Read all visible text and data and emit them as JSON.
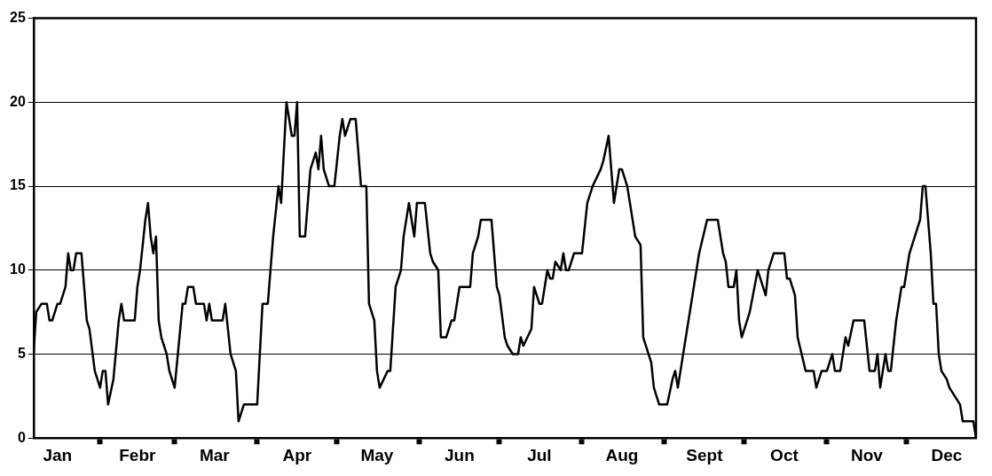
{
  "chart_data": {
    "type": "line",
    "xlim": [
      "--01-07",
      "--12-27"
    ],
    "ylim": [
      0,
      25
    ],
    "yticks": [
      0,
      5,
      10,
      15,
      20,
      25
    ],
    "xticks": [
      {
        "value": "--01-16",
        "label": "Jan"
      },
      {
        "value": "--02-01",
        "label": null
      },
      {
        "value": "--02-15",
        "label": "Febr"
      },
      {
        "value": "--03-01",
        "label": null
      },
      {
        "value": "--03-16",
        "label": "Mar"
      },
      {
        "value": "--04-01",
        "label": null
      },
      {
        "value": "--04-16",
        "label": "Apr"
      },
      {
        "value": "--05-01",
        "label": null
      },
      {
        "value": "--05-16",
        "label": "May"
      },
      {
        "value": "--06-01",
        "label": null
      },
      {
        "value": "--06-16",
        "label": "Jun"
      },
      {
        "value": "--07-01",
        "label": null
      },
      {
        "value": "--07-16",
        "label": "Jul"
      },
      {
        "value": "--08-01",
        "label": null
      },
      {
        "value": "--08-16",
        "label": "Aug"
      },
      {
        "value": "--09-01",
        "label": null
      },
      {
        "value": "--09-16",
        "label": "Sept"
      },
      {
        "value": "--10-01",
        "label": null
      },
      {
        "value": "--10-16",
        "label": "Oct"
      },
      {
        "value": "--11-01",
        "label": null
      },
      {
        "value": "--11-16",
        "label": "Nov"
      },
      {
        "value": "--12-01",
        "label": null
      },
      {
        "value": "--12-16",
        "label": "Dec"
      }
    ],
    "grid": "y",
    "legend": false,
    "marker": "none",
    "line_style": "solid",
    "series": [
      {
        "color": "#000000",
        "x": [
          "--01-07",
          "--01-08",
          "--01-10",
          "--01-12",
          "--01-13",
          "--01-14",
          "--01-16",
          "--01-17",
          "--01-19",
          "--01-20",
          "--01-21",
          "--01-22",
          "--01-23",
          "--01-25",
          "--01-26",
          "--01-27",
          "--01-28",
          "--01-30",
          "--02-01",
          "--02-02",
          "--02-03",
          "--02-04",
          "--02-06",
          "--02-08",
          "--02-09",
          "--02-10",
          "--02-14",
          "--02-15",
          "--02-16",
          "--02-18",
          "--02-19",
          "--02-20",
          "--02-21",
          "--02-22",
          "--02-23",
          "--02-24",
          "--02-26",
          "--02-27",
          "--03-01",
          "--03-04",
          "--03-05",
          "--03-06",
          "--03-08",
          "--03-09",
          "--03-12",
          "--03-13",
          "--03-14",
          "--03-15",
          "--03-19",
          "--03-20",
          "--03-22",
          "--03-24",
          "--03-25",
          "--03-27",
          "--04-01",
          "--04-03",
          "--04-05",
          "--04-07",
          "--04-09",
          "--04-10",
          "--04-12",
          "--04-14",
          "--04-15",
          "--04-16",
          "--04-17",
          "--04-19",
          "--04-21",
          "--04-23",
          "--04-24",
          "--04-25",
          "--04-26",
          "--04-28",
          "--04-30",
          "--05-02",
          "--05-03",
          "--05-04",
          "--05-06",
          "--05-08",
          "--05-09",
          "--05-10",
          "--05-12",
          "--05-13",
          "--05-15",
          "--05-16",
          "--05-17",
          "--05-20",
          "--05-21",
          "--05-23",
          "--05-25",
          "--05-26",
          "--05-27",
          "--05-28",
          "--05-30",
          "--05-31",
          "--06-02",
          "--06-03",
          "--06-05",
          "--06-06",
          "--06-08",
          "--06-09",
          "--06-11",
          "--06-13",
          "--06-14",
          "--06-16",
          "--06-20",
          "--06-21",
          "--06-23",
          "--06-24",
          "--06-28",
          "--06-30",
          "--07-01",
          "--07-03",
          "--07-04",
          "--07-06",
          "--07-08",
          "--07-09",
          "--07-10",
          "--07-13",
          "--07-14",
          "--07-16",
          "--07-17",
          "--07-19",
          "--07-20",
          "--07-21",
          "--07-22",
          "--07-24",
          "--07-25",
          "--07-26",
          "--07-27",
          "--07-29",
          "--08-01",
          "--08-03",
          "--08-05",
          "--08-08",
          "--08-09",
          "--08-11",
          "--08-12",
          "--08-13",
          "--08-15",
          "--08-16",
          "--08-18",
          "--08-20",
          "--08-21",
          "--08-23",
          "--08-24",
          "--08-25",
          "--08-27",
          "--08-28",
          "--08-30",
          "--09-02",
          "--09-04",
          "--09-05",
          "--09-06",
          "--09-09",
          "--09-10",
          "--09-13",
          "--09-14",
          "--09-17",
          "--09-21",
          "--09-23",
          "--09-24",
          "--09-25",
          "--09-27",
          "--09-28",
          "--09-29",
          "--09-30",
          "--10-03",
          "--10-06",
          "--10-09",
          "--10-10",
          "--10-12",
          "--10-16",
          "--10-17",
          "--10-18",
          "--10-20",
          "--10-21",
          "--10-24",
          "--10-27",
          "--10-28",
          "--10-30",
          "--11-01",
          "--11-03",
          "--11-04",
          "--11-06",
          "--11-08",
          "--11-09",
          "--11-11",
          "--11-15",
          "--11-17",
          "--11-19",
          "--11-20",
          "--11-21",
          "--11-23",
          "--11-24",
          "--11-25",
          "--11-27",
          "--11-29",
          "--11-30",
          "--12-02",
          "--12-04",
          "--12-06",
          "--12-07",
          "--12-08",
          "--12-10",
          "--12-11",
          "--12-12",
          "--12-13",
          "--12-14",
          "--12-16",
          "--12-17",
          "--12-19",
          "--12-21",
          "--12-22",
          "--12-26",
          "--12-27"
        ],
        "values": [
          5,
          7.5,
          8,
          8,
          7,
          7,
          8,
          8,
          9,
          11,
          10,
          10,
          11,
          11,
          9,
          7,
          6.5,
          4,
          3,
          4,
          4,
          2,
          3.5,
          7,
          8,
          7,
          7,
          9,
          10,
          13,
          14,
          12,
          11,
          12,
          7,
          6,
          5,
          4,
          3,
          8,
          8,
          9,
          9,
          8,
          8,
          7,
          8,
          7,
          7,
          8,
          5,
          4,
          1,
          2,
          2,
          8,
          8,
          12,
          15,
          14,
          20,
          18,
          18,
          20,
          12,
          12,
          16,
          17,
          16,
          18,
          16,
          15,
          15,
          18,
          19,
          18,
          19,
          19,
          17,
          15,
          15,
          8,
          7,
          4,
          3,
          4,
          4,
          9,
          10,
          12,
          13,
          14,
          12,
          14,
          14,
          14,
          11,
          10.5,
          10,
          6,
          6,
          7,
          7,
          9,
          9,
          11,
          12,
          13,
          13,
          9,
          8.5,
          6,
          5.5,
          5,
          5,
          6,
          5.5,
          6.5,
          9,
          8,
          8,
          10,
          9.5,
          9.5,
          10.5,
          10,
          11,
          10,
          10,
          11,
          11,
          14,
          15,
          16,
          16.5,
          18,
          16,
          14,
          16,
          16,
          15,
          13,
          12,
          11.5,
          6,
          5.5,
          4.5,
          3,
          2,
          2,
          3.5,
          4,
          3,
          6,
          7,
          10,
          11,
          13,
          13,
          11,
          10.5,
          9,
          9,
          10,
          7,
          6,
          7.5,
          10,
          8.5,
          10,
          11,
          11,
          9.5,
          9.5,
          8.5,
          6,
          4,
          4,
          3,
          4,
          4,
          5,
          4,
          4,
          6,
          5.5,
          7,
          7,
          4,
          4,
          5,
          3,
          5,
          4,
          4,
          7,
          9,
          9,
          11,
          12,
          13,
          15,
          15,
          11,
          8,
          8,
          5,
          4,
          3.5,
          3,
          2.5,
          2,
          1,
          1,
          0
        ]
      }
    ]
  }
}
